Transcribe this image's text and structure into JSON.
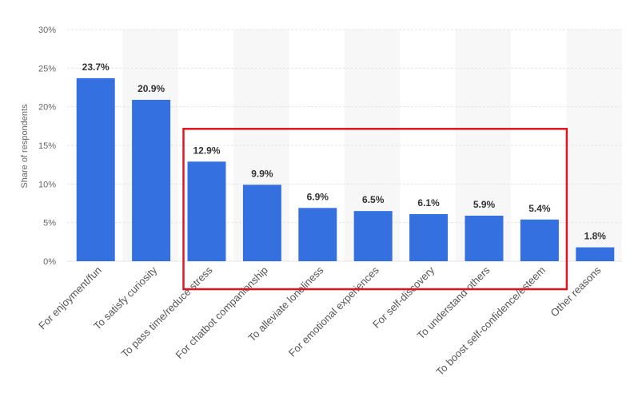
{
  "chart_data": {
    "type": "bar",
    "ylabel": "Share of respondents",
    "xlabel": "",
    "ylim": [
      0,
      30
    ],
    "y_ticks": [
      0,
      5,
      10,
      15,
      20,
      25,
      30
    ],
    "y_tick_labels": [
      "0%",
      "5%",
      "10%",
      "15%",
      "20%",
      "25%",
      "30%"
    ],
    "grid": true,
    "categories": [
      "For enjoyment/fun",
      "To satisfy curiosity",
      "To pass time/reduce stress",
      "For chatbot companionship",
      "To alleviate loneliness",
      "For emotional experiences",
      "For self-discovery",
      "To understand others",
      "To boost self-confidence/esteem",
      "Other reasons"
    ],
    "values": [
      23.7,
      20.9,
      12.9,
      9.9,
      6.9,
      6.5,
      6.1,
      5.9,
      5.4,
      1.8
    ],
    "value_labels": [
      "23.7%",
      "20.9%",
      "12.9%",
      "9.9%",
      "6.9%",
      "6.5%",
      "6.1%",
      "5.9%",
      "5.4%",
      "1.8%"
    ],
    "colors": {
      "bar": "#3570e0",
      "highlight_box": "#e0141e",
      "grid": "#e5e5e5",
      "band": "#f7f7f7"
    },
    "highlight": {
      "categories": [
        "To pass time/reduce stress",
        "For chatbot companionship",
        "To alleviate loneliness",
        "For emotional experiences",
        "For self-discovery",
        "To understand others",
        "To boost self-confidence/esteem"
      ]
    }
  }
}
